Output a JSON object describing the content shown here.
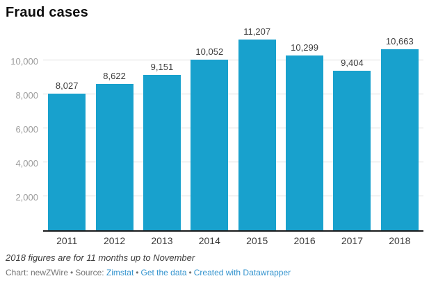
{
  "header": {
    "title": "Fraud cases"
  },
  "chart_data": {
    "type": "bar",
    "title": "Fraud cases",
    "categories": [
      "2011",
      "2012",
      "2013",
      "2014",
      "2015",
      "2016",
      "2017",
      "2018"
    ],
    "values": [
      8027,
      8622,
      9151,
      10052,
      11207,
      10299,
      9404,
      10663
    ],
    "value_labels": [
      "8,027",
      "8,622",
      "9,151",
      "10,052",
      "11,207",
      "10,299",
      "9,404",
      "10,663"
    ],
    "xlabel": "",
    "ylabel": "",
    "ylim": [
      0,
      11430
    ],
    "yticks": [
      2000,
      4000,
      6000,
      8000,
      10000
    ],
    "ytick_labels": [
      "2,000",
      "4,000",
      "6,000",
      "8,000",
      "10,000"
    ],
    "grid": true,
    "legend": "none",
    "bar_color": "#18a1cd"
  },
  "colors": {
    "bar": "#18a1cd",
    "gridline": "#dcdcdc",
    "baseline": "#1a1b1c",
    "link_blue": "#3293ce"
  },
  "footer": {
    "footnote": "2018 figures are for 11 months up to November",
    "byline": "Chart: newZWire",
    "sep": "•",
    "source_label": "Source:",
    "source_link": "Zimstat",
    "get_data_link": "Get the data",
    "created_with_link": "Created with Datawrapper"
  }
}
